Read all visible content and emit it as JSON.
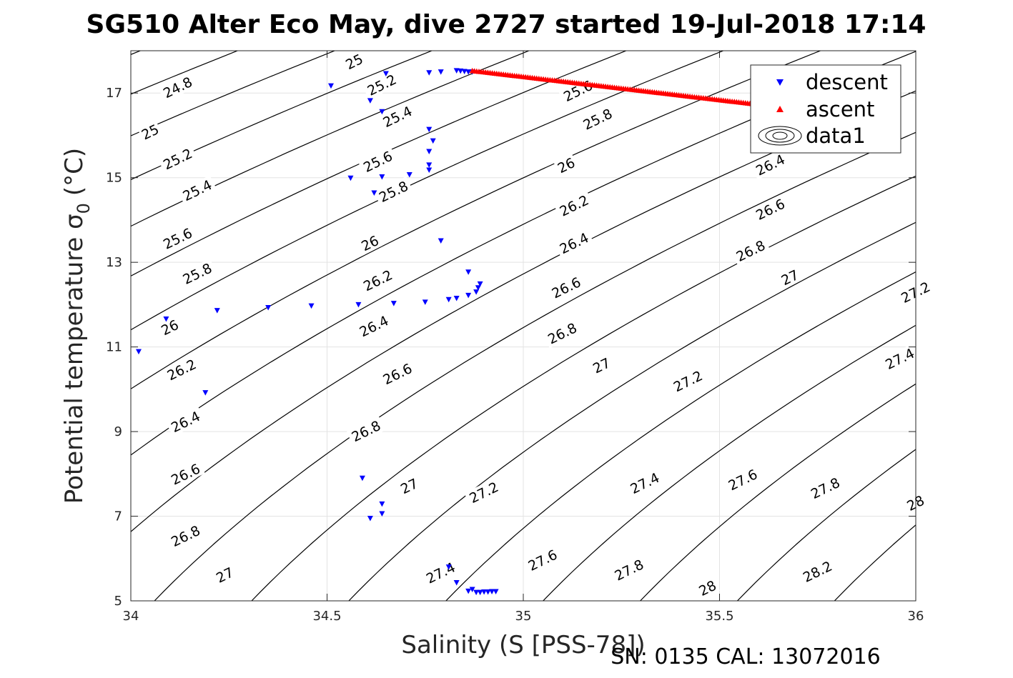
{
  "chart_data": {
    "type": "scatter",
    "title": "SG510 Alter Eco May, dive 2727 started 19-Jul-2018 17:14",
    "xlabel": "Salinity (S [PSS-78])",
    "ylabel": "Potential temperature σ",
    "ylabel_subscript": "0",
    "ylabel_unit": "(°C)",
    "footer": "SN: 0135  CAL: 13072016",
    "xlim": [
      34,
      36
    ],
    "ylim": [
      5,
      18
    ],
    "xticks": [
      34,
      34.5,
      35,
      35.5,
      36
    ],
    "xtick_labels": [
      "34",
      "34.5",
      "35",
      "35.5",
      "36"
    ],
    "yticks": [
      5,
      7,
      9,
      11,
      13,
      15,
      17
    ],
    "ytick_labels": [
      "5",
      "7",
      "9",
      "11",
      "13",
      "15",
      "17"
    ],
    "grid": true,
    "legend_position": "top-right",
    "legend": [
      {
        "label": "descent",
        "marker": "triangle-down",
        "color": "#0000ff"
      },
      {
        "label": "ascent",
        "marker": "triangle-up",
        "color": "#ff0000"
      },
      {
        "label": "data1",
        "marker": "contour",
        "color": "#000000"
      }
    ],
    "contours": {
      "color": "#000000",
      "levels": [
        24.8,
        25.0,
        25.2,
        25.4,
        25.6,
        25.8,
        26.0,
        26.2,
        26.4,
        26.6,
        26.8,
        27.0,
        27.2,
        27.4,
        27.6,
        27.8,
        28.0,
        28.2
      ],
      "labels": [
        {
          "text": "25",
          "s": 34.57,
          "t": 17.73
        },
        {
          "text": "24.8",
          "s": 34.12,
          "t": 17.12
        },
        {
          "text": "25.2",
          "s": 34.64,
          "t": 17.18
        },
        {
          "text": "25",
          "s": 34.05,
          "t": 16.07
        },
        {
          "text": "25.4",
          "s": 34.68,
          "t": 16.43
        },
        {
          "text": "25.6",
          "s": 35.14,
          "t": 17.04
        },
        {
          "text": "25.2",
          "s": 34.12,
          "t": 15.43
        },
        {
          "text": "25.6",
          "s": 34.63,
          "t": 15.37
        },
        {
          "text": "25.8",
          "s": 35.19,
          "t": 16.37
        },
        {
          "text": "25.4",
          "s": 34.17,
          "t": 14.69
        },
        {
          "text": "25.8",
          "s": 34.67,
          "t": 14.66
        },
        {
          "text": "26",
          "s": 35.11,
          "t": 15.28
        },
        {
          "text": "26.4",
          "s": 35.63,
          "t": 15.29
        },
        {
          "text": "25.6",
          "s": 34.12,
          "t": 13.55
        },
        {
          "text": "26.2",
          "s": 35.13,
          "t": 14.33
        },
        {
          "text": "26.6",
          "s": 35.63,
          "t": 14.24
        },
        {
          "text": "26",
          "s": 34.61,
          "t": 13.44
        },
        {
          "text": "26.4",
          "s": 35.13,
          "t": 13.44
        },
        {
          "text": "26.8",
          "s": 35.58,
          "t": 13.26
        },
        {
          "text": "25.8",
          "s": 34.17,
          "t": 12.72
        },
        {
          "text": "26.2",
          "s": 34.63,
          "t": 12.56
        },
        {
          "text": "26.6",
          "s": 35.11,
          "t": 12.39
        },
        {
          "text": "27",
          "s": 35.68,
          "t": 12.63
        },
        {
          "text": "27.2",
          "s": 36.0,
          "t": 12.28
        },
        {
          "text": "26",
          "s": 34.1,
          "t": 11.45
        },
        {
          "text": "26.4",
          "s": 34.62,
          "t": 11.48
        },
        {
          "text": "26.8",
          "s": 35.1,
          "t": 11.31
        },
        {
          "text": "27.4",
          "s": 35.96,
          "t": 10.71
        },
        {
          "text": "26.2",
          "s": 34.13,
          "t": 10.45
        },
        {
          "text": "26.6",
          "s": 34.68,
          "t": 10.35
        },
        {
          "text": "27",
          "s": 35.2,
          "t": 10.55
        },
        {
          "text": "27.2",
          "s": 35.42,
          "t": 10.18
        },
        {
          "text": "26.4",
          "s": 34.14,
          "t": 9.22
        },
        {
          "text": "26.8",
          "s": 34.6,
          "t": 9.0
        },
        {
          "text": "26.6",
          "s": 34.14,
          "t": 7.98
        },
        {
          "text": "27",
          "s": 34.71,
          "t": 7.7
        },
        {
          "text": "27.2",
          "s": 34.9,
          "t": 7.55
        },
        {
          "text": "27.4",
          "s": 35.31,
          "t": 7.77
        },
        {
          "text": "27.6",
          "s": 35.56,
          "t": 7.85
        },
        {
          "text": "27.8",
          "s": 35.77,
          "t": 7.65
        },
        {
          "text": "28",
          "s": 36.0,
          "t": 7.3
        },
        {
          "text": "26.8",
          "s": 34.14,
          "t": 6.52
        },
        {
          "text": "27",
          "s": 34.24,
          "t": 5.6
        },
        {
          "text": "27.4",
          "s": 34.79,
          "t": 5.65
        },
        {
          "text": "27.6",
          "s": 35.05,
          "t": 5.95
        },
        {
          "text": "27.8",
          "s": 35.27,
          "t": 5.72
        },
        {
          "text": "28",
          "s": 35.47,
          "t": 5.29
        },
        {
          "text": "28.2",
          "s": 35.75,
          "t": 5.68
        }
      ]
    },
    "series": [
      {
        "name": "descent",
        "marker": "triangle-down",
        "color": "#0000ff",
        "points": [
          [
            34.51,
            17.17
          ],
          [
            34.65,
            17.46
          ],
          [
            34.61,
            16.82
          ],
          [
            34.64,
            16.56
          ],
          [
            34.76,
            17.48
          ],
          [
            34.79,
            17.5
          ],
          [
            34.83,
            17.53
          ],
          [
            34.84,
            17.52
          ],
          [
            34.85,
            17.51
          ],
          [
            34.86,
            17.5
          ],
          [
            34.87,
            17.5
          ],
          [
            34.76,
            16.14
          ],
          [
            34.77,
            15.87
          ],
          [
            34.76,
            15.62
          ],
          [
            34.76,
            15.3
          ],
          [
            34.76,
            15.18
          ],
          [
            34.71,
            15.07
          ],
          [
            34.56,
            14.99
          ],
          [
            34.64,
            15.02
          ],
          [
            34.62,
            14.64
          ],
          [
            34.79,
            13.51
          ],
          [
            34.86,
            12.77
          ],
          [
            34.89,
            12.49
          ],
          [
            34.885,
            12.4
          ],
          [
            34.88,
            12.3
          ],
          [
            34.86,
            12.22
          ],
          [
            34.83,
            12.15
          ],
          [
            34.81,
            12.12
          ],
          [
            34.75,
            12.06
          ],
          [
            34.67,
            12.03
          ],
          [
            34.58,
            12.0
          ],
          [
            34.46,
            11.97
          ],
          [
            34.35,
            11.93
          ],
          [
            34.22,
            11.86
          ],
          [
            34.09,
            11.66
          ],
          [
            34.02,
            10.89
          ],
          [
            34.19,
            9.92
          ],
          [
            34.59,
            7.9
          ],
          [
            34.64,
            7.29
          ],
          [
            34.61,
            6.95
          ],
          [
            34.64,
            7.06
          ],
          [
            34.81,
            5.8
          ],
          [
            34.83,
            5.43
          ],
          [
            34.86,
            5.23
          ],
          [
            34.87,
            5.27
          ],
          [
            34.88,
            5.2
          ],
          [
            34.89,
            5.2
          ],
          [
            34.9,
            5.21
          ],
          [
            34.91,
            5.21
          ],
          [
            34.92,
            5.22
          ],
          [
            34.93,
            5.22
          ]
        ]
      },
      {
        "name": "ascent",
        "marker": "triangle-up",
        "color": "#ff0000",
        "points_note": "",
        "line_from": [
          34.87,
          17.53
        ],
        "line_to": [
          35.6,
          16.73
        ],
        "count": 130
      }
    ]
  }
}
